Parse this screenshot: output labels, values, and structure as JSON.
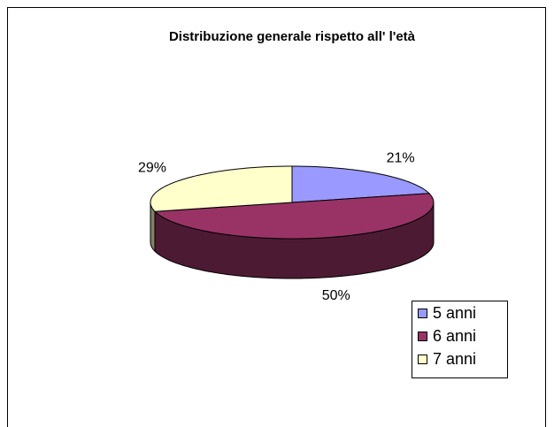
{
  "chart_data": {
    "type": "pie",
    "title": "Distribuzione generale rispetto all' l'età",
    "categories": [
      "5 anni",
      "6 anni",
      "7 anni"
    ],
    "values": [
      21,
      50,
      29
    ],
    "value_labels": [
      "21%",
      "50%",
      "29%"
    ],
    "colors": [
      "#9999ff",
      "#993366",
      "#ffffcc"
    ],
    "legend": "right"
  }
}
